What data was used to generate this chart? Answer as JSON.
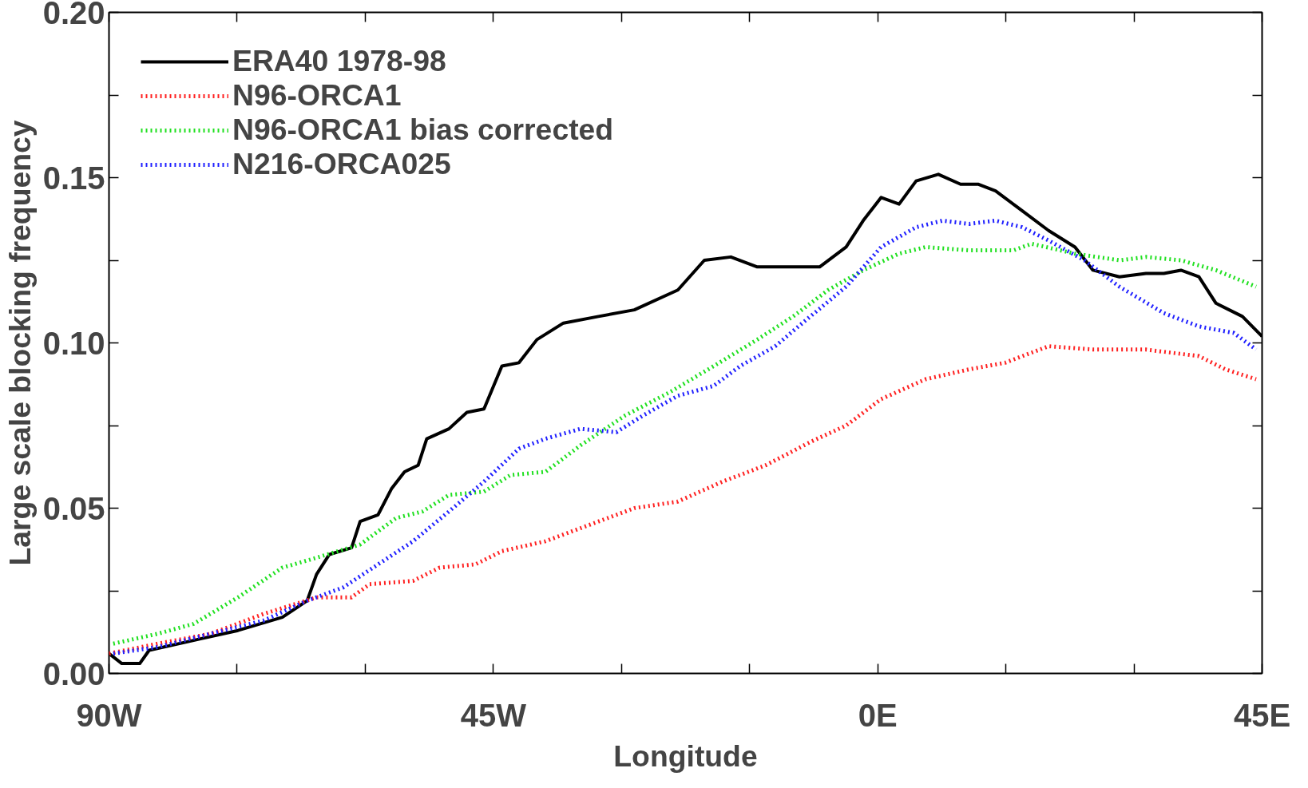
{
  "chart_data": {
    "type": "line",
    "xlabel": "Longitude",
    "ylabel": "Large scale blocking frequency",
    "xlim": [
      -90,
      45
    ],
    "ylim": [
      0,
      0.2
    ],
    "xticks": [
      {
        "value": -90,
        "label": "90W"
      },
      {
        "value": -75,
        "label": null
      },
      {
        "value": -60,
        "label": null
      },
      {
        "value": -45,
        "label": "45W"
      },
      {
        "value": -30,
        "label": null
      },
      {
        "value": -15,
        "label": null
      },
      {
        "value": 0,
        "label": "0E"
      },
      {
        "value": 15,
        "label": null
      },
      {
        "value": 30,
        "label": null
      },
      {
        "value": 45,
        "label": "45E"
      }
    ],
    "yticks": [
      {
        "value": 0,
        "label": "0.00"
      },
      {
        "value": 0.025,
        "label": null
      },
      {
        "value": 0.05,
        "label": "0.05"
      },
      {
        "value": 0.075,
        "label": null
      },
      {
        "value": 0.1,
        "label": "0.10"
      },
      {
        "value": 0.125,
        "label": null
      },
      {
        "value": 0.15,
        "label": "0.15"
      },
      {
        "value": 0.175,
        "label": null
      },
      {
        "value": 0.2,
        "label": "0.20"
      }
    ],
    "grid": false,
    "legend": "top left",
    "marker": "none",
    "series": [
      {
        "name": "ERA40 1978-98",
        "color": "#000000",
        "line_style": "solid",
        "x": [
          -90,
          -88.5,
          -86.4,
          -85.3,
          -80.1,
          -74.9,
          -69.7,
          -66.8,
          -65.7,
          -64.2,
          -61.6,
          -60.6,
          -58.5,
          -56.9,
          -55.4,
          -53.8,
          -52.8,
          -50.2,
          -48.1,
          -46.1,
          -44.0,
          -42.0,
          -39.9,
          -36.8,
          -32.7,
          -28.5,
          -23.4,
          -20.3,
          -17.2,
          -14.1,
          -9.9,
          -6.8,
          -3.7,
          -1.7,
          0.4,
          2.5,
          4.5,
          7.1,
          9.7,
          11.8,
          13.8,
          16.9,
          20.0,
          23.1,
          25.2,
          28.3,
          31.4,
          33.5,
          35.5,
          37.6,
          39.6,
          42.7,
          45.0
        ],
        "values": [
          0.006,
          0.003,
          0.003,
          0.007,
          0.01,
          0.013,
          0.017,
          0.022,
          0.03,
          0.036,
          0.038,
          0.046,
          0.048,
          0.056,
          0.061,
          0.063,
          0.071,
          0.074,
          0.079,
          0.08,
          0.093,
          0.094,
          0.101,
          0.106,
          0.108,
          0.11,
          0.116,
          0.125,
          0.126,
          0.123,
          0.123,
          0.123,
          0.129,
          0.137,
          0.144,
          0.142,
          0.149,
          0.151,
          0.148,
          0.148,
          0.146,
          0.14,
          0.134,
          0.129,
          0.122,
          0.12,
          0.121,
          0.121,
          0.122,
          0.12,
          0.112,
          0.108,
          0.102
        ]
      },
      {
        "name": "N96-ORCA1",
        "color": "#ff2020",
        "line_style": "dotted",
        "x": [
          -90,
          -84.3,
          -78.1,
          -71.9,
          -65.7,
          -61.6,
          -59.5,
          -54.4,
          -51.3,
          -47.1,
          -44.0,
          -38.9,
          -33.7,
          -28.5,
          -23.4,
          -18.2,
          -13.1,
          -7.9,
          -3.7,
          0.4,
          5.6,
          10.7,
          14.9,
          20.0,
          25.2,
          31.4,
          37.6,
          40.7,
          44.3
        ],
        "values": [
          0.006,
          0.009,
          0.012,
          0.018,
          0.023,
          0.023,
          0.027,
          0.028,
          0.032,
          0.033,
          0.037,
          0.04,
          0.045,
          0.05,
          0.052,
          0.058,
          0.063,
          0.07,
          0.075,
          0.083,
          0.089,
          0.092,
          0.094,
          0.099,
          0.098,
          0.098,
          0.096,
          0.092,
          0.089
        ]
      },
      {
        "name": "N96-ORCA1 bias corrected",
        "color": "#20e020",
        "line_style": "dotted",
        "x": [
          -89.5,
          -84.3,
          -80.1,
          -74.9,
          -69.7,
          -65.7,
          -60.6,
          -56.4,
          -53.3,
          -50.2,
          -46.1,
          -43.0,
          -38.9,
          -34.8,
          -29.6,
          -24.4,
          -19.2,
          -14.1,
          -9.9,
          -5.8,
          -1.7,
          2.5,
          5.6,
          10.7,
          15.9,
          18.0,
          23.1,
          28.3,
          31.4,
          35.5,
          39.6,
          44.3
        ],
        "values": [
          0.009,
          0.012,
          0.015,
          0.023,
          0.032,
          0.035,
          0.039,
          0.047,
          0.049,
          0.054,
          0.055,
          0.06,
          0.061,
          0.069,
          0.078,
          0.085,
          0.093,
          0.101,
          0.108,
          0.116,
          0.122,
          0.127,
          0.129,
          0.128,
          0.128,
          0.13,
          0.127,
          0.125,
          0.126,
          0.125,
          0.122,
          0.117
        ]
      },
      {
        "name": "N216-ORCA025",
        "color": "#2020ff",
        "line_style": "dotted",
        "x": [
          -89.5,
          -84.3,
          -78.1,
          -71.9,
          -66.8,
          -62.6,
          -58.5,
          -54.4,
          -50.2,
          -46.1,
          -42.0,
          -38.9,
          -34.8,
          -30.6,
          -27.5,
          -23.4,
          -19.2,
          -16.1,
          -12.0,
          -7.9,
          -3.7,
          0.4,
          4.5,
          7.6,
          10.7,
          13.8,
          16.9,
          20.0,
          24.2,
          28.3,
          33.5,
          37.6,
          41.7,
          44.3
        ],
        "values": [
          0.006,
          0.008,
          0.012,
          0.016,
          0.022,
          0.026,
          0.033,
          0.04,
          0.049,
          0.058,
          0.068,
          0.071,
          0.074,
          0.073,
          0.078,
          0.084,
          0.087,
          0.093,
          0.099,
          0.108,
          0.117,
          0.129,
          0.135,
          0.137,
          0.136,
          0.137,
          0.135,
          0.131,
          0.125,
          0.117,
          0.109,
          0.105,
          0.103,
          0.098
        ]
      }
    ]
  }
}
